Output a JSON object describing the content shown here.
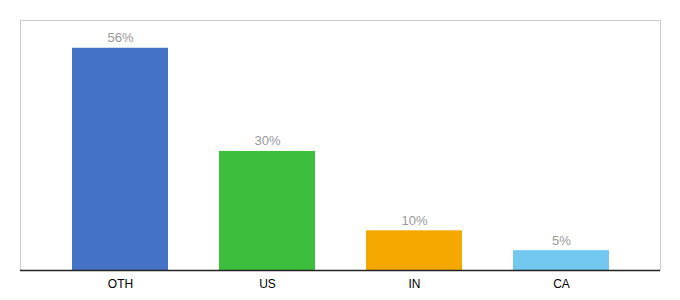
{
  "chart_data": {
    "type": "bar",
    "categories": [
      "OTH",
      "US",
      "IN",
      "CA"
    ],
    "values": [
      56,
      30,
      10,
      5
    ],
    "value_labels": [
      "56%",
      "30%",
      "10%",
      "5%"
    ],
    "colors": [
      "#4472c4",
      "#3dbf3d",
      "#f5a800",
      "#72c8f0"
    ],
    "ylim": [
      0,
      63
    ],
    "grid": false,
    "data_labels": true,
    "tick_labels": "x"
  }
}
